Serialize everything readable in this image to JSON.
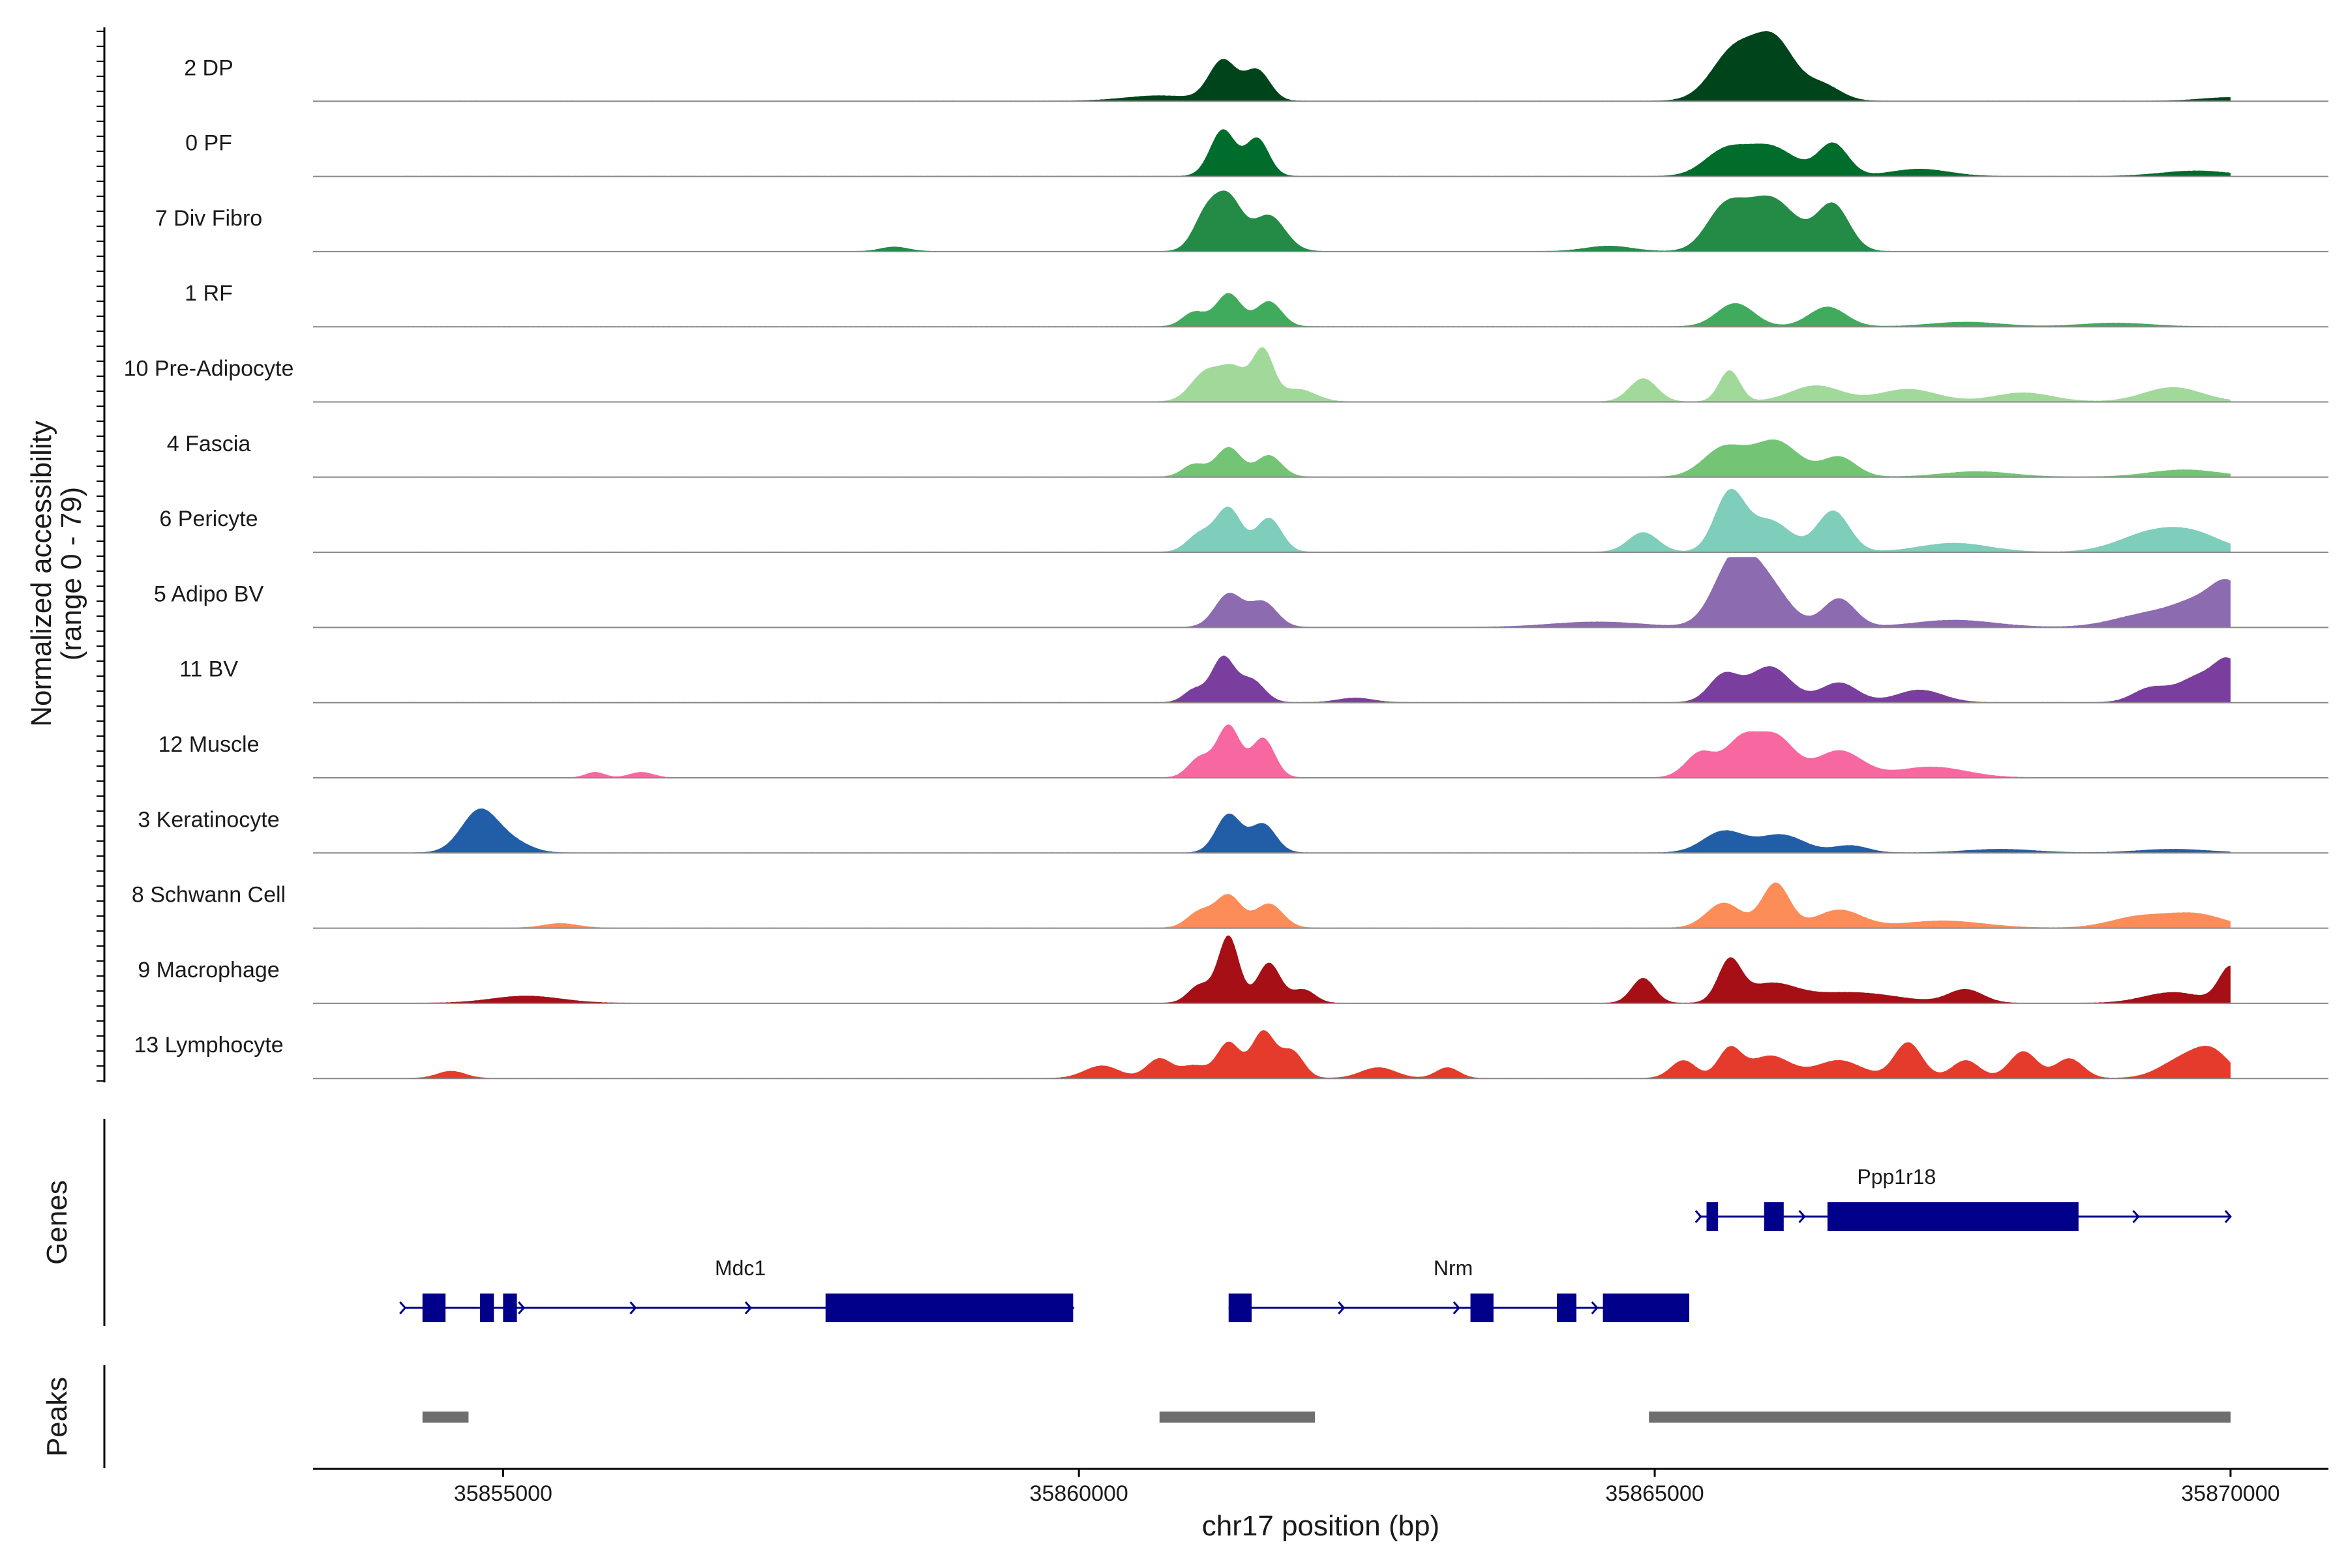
{
  "chart_data": {
    "type": "area",
    "ylabel": "Normalized accessibility",
    "ylabel_range": "(range 0 - 79)",
    "ylim": [
      0,
      79
    ],
    "xlabel": "chr17 position (bp)",
    "xlim": [
      35853350,
      35870850
    ],
    "xticks": [
      35855000,
      35860000,
      35865000,
      35870000
    ],
    "xtick_labels": [
      "35855000",
      "35860000",
      "35865000",
      "35870000"
    ],
    "data_range": [
      35854150,
      35870000
    ],
    "genes_label": "Genes",
    "peaks_label": "Peaks",
    "series": [
      {
        "name": "2 DP",
        "color": "#00441b",
        "peaks": [
          [
            35861250,
            45,
            120
          ],
          [
            35861550,
            34,
            110
          ],
          [
            35865700,
            58,
            200
          ],
          [
            35866050,
            61,
            170
          ],
          [
            35866450,
            18,
            160
          ],
          [
            35860700,
            6,
            300
          ],
          [
            35870000,
            4,
            250
          ]
        ]
      },
      {
        "name": "0 PF",
        "color": "#006d2c",
        "peaks": [
          [
            35861250,
            52,
            110
          ],
          [
            35861550,
            42,
            100
          ],
          [
            35865600,
            26,
            180
          ],
          [
            35866000,
            33,
            220
          ],
          [
            35866550,
            36,
            130
          ],
          [
            35867300,
            8,
            250
          ],
          [
            35869700,
            6,
            300
          ]
        ]
      },
      {
        "name": "7 Div Fibro",
        "color": "#238b45",
        "peaks": [
          [
            35861100,
            38,
            110
          ],
          [
            35861300,
            57,
            120
          ],
          [
            35861650,
            40,
            140
          ],
          [
            35865600,
            42,
            160
          ],
          [
            35866000,
            60,
            230
          ],
          [
            35866550,
            51,
            140
          ],
          [
            35864600,
            6,
            200
          ],
          [
            35858400,
            5,
            120
          ]
        ]
      },
      {
        "name": "1 RF",
        "color": "#41ab5d",
        "peaks": [
          [
            35861000,
            16,
            100
          ],
          [
            35861300,
            37,
            110
          ],
          [
            35861650,
            28,
            110
          ],
          [
            35865700,
            26,
            160
          ],
          [
            35866500,
            22,
            160
          ],
          [
            35867700,
            5,
            300
          ],
          [
            35869000,
            4,
            300
          ]
        ]
      },
      {
        "name": "10 Pre-Adipocyte",
        "color": "#a1d99b",
        "peaks": [
          [
            35861100,
            32,
            130
          ],
          [
            35861350,
            35,
            120
          ],
          [
            35861600,
            55,
            90
          ],
          [
            35861900,
            14,
            150
          ],
          [
            35864900,
            26,
            120
          ],
          [
            35865650,
            35,
            90
          ],
          [
            35866400,
            18,
            220
          ],
          [
            35867200,
            14,
            250
          ],
          [
            35868200,
            10,
            250
          ],
          [
            35869500,
            16,
            250
          ]
        ]
      },
      {
        "name": "4 Fascia",
        "color": "#74c476",
        "peaks": [
          [
            35861000,
            14,
            100
          ],
          [
            35861300,
            33,
            110
          ],
          [
            35861650,
            24,
            110
          ],
          [
            35865600,
            32,
            180
          ],
          [
            35866050,
            40,
            200
          ],
          [
            35866600,
            22,
            150
          ],
          [
            35867800,
            6,
            300
          ],
          [
            35869600,
            8,
            300
          ]
        ]
      },
      {
        "name": "6 Pericyte",
        "color": "#7fcdbb",
        "peaks": [
          [
            35861050,
            20,
            110
          ],
          [
            35861300,
            49,
            110
          ],
          [
            35861650,
            38,
            110
          ],
          [
            35864900,
            22,
            130
          ],
          [
            35865650,
            65,
            130
          ],
          [
            35866000,
            35,
            180
          ],
          [
            35866550,
            46,
            140
          ],
          [
            35867600,
            10,
            300
          ],
          [
            35869300,
            20,
            280
          ],
          [
            35869700,
            17,
            250
          ]
        ]
      },
      {
        "name": "5 Adipo BV",
        "color": "#8c6bb1",
        "peaks": [
          [
            35861300,
            37,
            120
          ],
          [
            35861600,
            28,
            120
          ],
          [
            35865700,
            78,
            180
          ],
          [
            35866000,
            40,
            180
          ],
          [
            35866600,
            32,
            140
          ],
          [
            35867600,
            8,
            350
          ],
          [
            35869300,
            15,
            300
          ],
          [
            35869750,
            25,
            220
          ],
          [
            35870000,
            38,
            150
          ],
          [
            35864500,
            6,
            400
          ]
        ]
      },
      {
        "name": "11 BV",
        "color": "#7a3e9e",
        "peaks": [
          [
            35861250,
            50,
            100
          ],
          [
            35861500,
            25,
            110
          ],
          [
            35861000,
            14,
            90
          ],
          [
            35865600,
            30,
            130
          ],
          [
            35866000,
            40,
            180
          ],
          [
            35866600,
            22,
            160
          ],
          [
            35869300,
            15,
            150
          ],
          [
            35869750,
            30,
            200
          ],
          [
            35870000,
            35,
            120
          ],
          [
            35862400,
            5,
            150
          ],
          [
            35867300,
            14,
            200
          ]
        ]
      },
      {
        "name": "12 Muscle",
        "color": "#f768a1",
        "peaks": [
          [
            35861050,
            22,
            100
          ],
          [
            35861300,
            58,
            100
          ],
          [
            35861600,
            44,
            100
          ],
          [
            35865400,
            28,
            130
          ],
          [
            35865750,
            40,
            140
          ],
          [
            35866050,
            45,
            160
          ],
          [
            35866600,
            30,
            200
          ],
          [
            35867400,
            12,
            300
          ],
          [
            35855800,
            6,
            80
          ],
          [
            35856200,
            6,
            100
          ]
        ]
      },
      {
        "name": "3 Keratinocyte",
        "color": "#225ea8",
        "peaks": [
          [
            35854800,
            48,
            160
          ],
          [
            35855100,
            10,
            150
          ],
          [
            35861300,
            43,
            110
          ],
          [
            35861600,
            32,
            110
          ],
          [
            35865600,
            24,
            180
          ],
          [
            35866100,
            20,
            200
          ],
          [
            35866700,
            8,
            150
          ],
          [
            35868000,
            4,
            300
          ],
          [
            35869500,
            4,
            300
          ]
        ]
      },
      {
        "name": "8 Schwann Cell",
        "color": "#fc8d59",
        "peaks": [
          [
            35861050,
            18,
            110
          ],
          [
            35861300,
            36,
            110
          ],
          [
            35861650,
            27,
            120
          ],
          [
            35865600,
            28,
            150
          ],
          [
            35866050,
            50,
            120
          ],
          [
            35866600,
            20,
            200
          ],
          [
            35867500,
            8,
            350
          ],
          [
            35869200,
            12,
            250
          ],
          [
            35869700,
            15,
            250
          ],
          [
            35855500,
            5,
            150
          ]
        ]
      },
      {
        "name": "9 Macrophage",
        "color": "#a50f15",
        "peaks": [
          [
            35861050,
            20,
            100
          ],
          [
            35861300,
            75,
            90
          ],
          [
            35861650,
            45,
            100
          ],
          [
            35861950,
            15,
            100
          ],
          [
            35864900,
            28,
            100
          ],
          [
            35865650,
            45,
            100
          ],
          [
            35866000,
            20,
            220
          ],
          [
            35866700,
            12,
            400
          ],
          [
            35867700,
            15,
            150
          ],
          [
            35869500,
            12,
            250
          ],
          [
            35870000,
            40,
            100
          ],
          [
            35855200,
            8,
            300
          ]
        ]
      },
      {
        "name": "13 Lymphocyte",
        "color": "#e53b2c",
        "peaks": [
          [
            35860200,
            14,
            150
          ],
          [
            35860700,
            22,
            110
          ],
          [
            35861000,
            14,
            110
          ],
          [
            35861300,
            40,
            100
          ],
          [
            35861600,
            52,
            100
          ],
          [
            35861850,
            30,
            100
          ],
          [
            35862600,
            12,
            150
          ],
          [
            35863200,
            12,
            100
          ],
          [
            35865250,
            20,
            110
          ],
          [
            35865650,
            32,
            100
          ],
          [
            35866000,
            25,
            180
          ],
          [
            35866600,
            20,
            200
          ],
          [
            35867200,
            40,
            120
          ],
          [
            35867700,
            20,
            120
          ],
          [
            35868200,
            30,
            120
          ],
          [
            35868600,
            22,
            120
          ],
          [
            35869600,
            22,
            200
          ],
          [
            35869850,
            24,
            150
          ],
          [
            35854550,
            8,
            120
          ]
        ]
      }
    ],
    "genes": [
      {
        "name": "Ppp1r18",
        "color": "#00008b",
        "row": 0,
        "start": 35865400,
        "end": 35870000,
        "label_x": 35867100,
        "exons": [
          [
            35865450,
            35865550
          ],
          [
            35865950,
            35866120
          ],
          [
            35866500,
            35868680
          ]
        ],
        "arrows": [
          35865400,
          35866300,
          35869200,
          35870000
        ]
      },
      {
        "name": "Mdc1",
        "color": "#00008b",
        "row": 1,
        "start": 35854150,
        "end": 35859950,
        "label_x": 35857060,
        "exons": [
          [
            35854300,
            35854500
          ],
          [
            35854800,
            35854920
          ],
          [
            35855000,
            35855120
          ],
          [
            35857800,
            35859950
          ]
        ],
        "arrows": [
          35854150,
          35855180,
          35856150,
          35857150,
          35859950
        ]
      },
      {
        "name": "Nrm",
        "color": "#00008b",
        "row": 1,
        "start": 35861300,
        "end": 35865300,
        "label_x": 35863250,
        "exons": [
          [
            35861300,
            35861500
          ],
          [
            35863400,
            35863600
          ],
          [
            35864150,
            35864320
          ],
          [
            35864550,
            35865300
          ]
        ],
        "arrows": [
          35861400,
          35862300,
          35863300,
          35864500
        ]
      }
    ],
    "peaks": [
      {
        "start": 35854300,
        "end": 35854700
      },
      {
        "start": 35860700,
        "end": 35862050
      },
      {
        "start": 35864950,
        "end": 35870000
      }
    ]
  }
}
